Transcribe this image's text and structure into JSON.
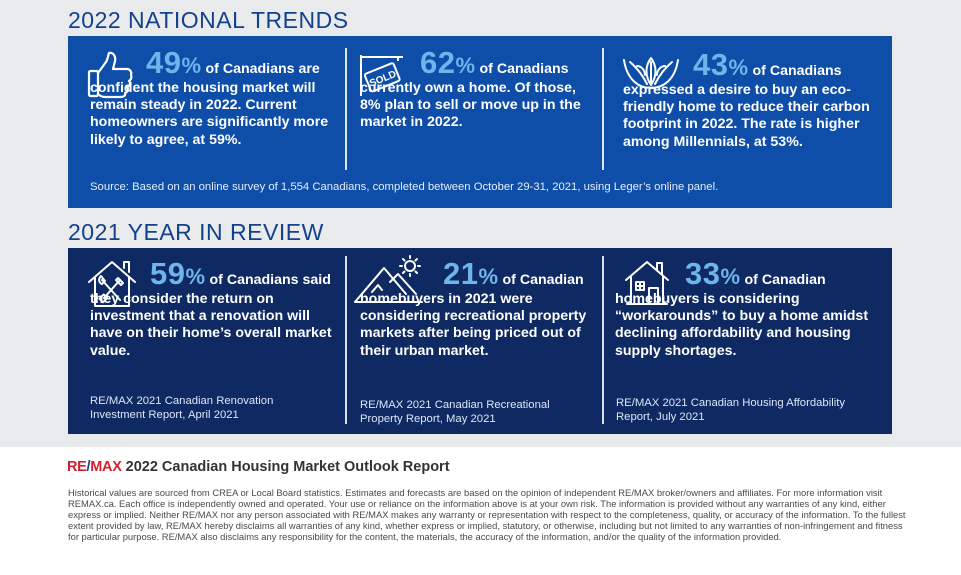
{
  "national": {
    "title": "2022 NATIONAL TRENDS",
    "stats": [
      {
        "icon": "thumbs-up-icon",
        "percent": "49",
        "suffix": " of Canadians are confident the housing market will remain steady in 2022. Current homeowners are significantly more likely to agree, at 59%."
      },
      {
        "icon": "sold-sign-icon",
        "percent": "62",
        "suffix": " of Canadians currently own a home. Of those, 8% plan to sell or move up in the market in 2022."
      },
      {
        "icon": "leaf-bowl-icon",
        "percent": "43",
        "suffix": " of Canadians expressed a desire to buy an eco-friendly home to reduce their carbon footprint in 2022. The rate is higher among Millennials, at 53%."
      }
    ],
    "source": "Source: Based on an online survey of 1,554 Canadians, completed between October 29-31, 2021, using Leger’s online panel."
  },
  "review": {
    "title": "2021 YEAR IN REVIEW",
    "stats": [
      {
        "icon": "house-tools-icon",
        "percent": "59",
        "suffix": " of Canadians said they consider the return on investment that a renovation will have on their home’s overall market value.",
        "note": "RE/MAX 2021 Canadian Renovation Investment Report, April 2021"
      },
      {
        "icon": "mountain-sun-icon",
        "percent": "21",
        "suffix": " of Canadian homebuyers in 2021 were considering recreational property markets after being priced out of their urban market.",
        "note": "RE/MAX 2021 Canadian Recreational Property Report, May 2021"
      },
      {
        "icon": "house-icon",
        "percent": "33",
        "suffix": " of Canadian homebuyers is considering “workarounds” to buy a home amidst declining affordability and housing supply shortages.",
        "note": "RE/MAX 2021 Canadian Housing Affordability Report, July 2021"
      }
    ]
  },
  "footer": {
    "logo_re": "RE",
    "logo_slash": "/",
    "logo_max": "MAX",
    "title": "2022 Canadian Housing Market Outlook Report",
    "disclaimer": "Historical values are sourced from CREA or Local Board statistics. Estimates and forecasts are based on the opinion of independent RE/MAX broker/owners and affiliates. For more information visit REMAX.ca. Each office is independently owned and operated. Your use or reliance on the information above is at your own risk. The information is provided without any warranties of any kind, either express or implied. Neither RE/MAX nor any person associated with RE/MAX makes any warranty or representation with respect to the completeness, quality, or accuracy of the information. To the fullest extent provided by law, RE/MAX hereby disclaims all warranties of any kind, whether express or implied, statutory, or otherwise, including but not limited to any warranties of non-infringement and fitness for particular purpose. RE/MAX also disclaims any responsibility for the content, the materials, the accuracy of the information, and/or the quality of the information provided."
  },
  "colors": {
    "title": "#13418e",
    "panel_blue": "#0e4ea8",
    "panel_navy": "#0f2a63",
    "percent": "#6db5ea",
    "brand_red": "#d2202f"
  }
}
